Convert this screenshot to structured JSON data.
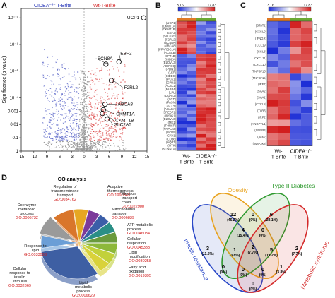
{
  "panels": {
    "a": {
      "label": "A"
    },
    "b": {
      "label": "B"
    },
    "c": {
      "label": "C"
    },
    "d": {
      "label": "D"
    },
    "e": {
      "label": "E"
    }
  },
  "chart_data": [
    {
      "panel": "A",
      "type": "scatter",
      "title": "",
      "legend_left": "CIDEA⁻/⁻ T-Brite",
      "legend_right": "Wt-T-Brite",
      "ylabel": "Significance (p value)",
      "xlabel": "Fold Change",
      "xlim": [
        -15,
        15
      ],
      "xticks": [
        "-15",
        "-12",
        "-9",
        "-6",
        "-3",
        "0",
        "3",
        "6",
        "9",
        "12",
        "15"
      ],
      "yticks": [
        "10⁻¹⁰",
        "10⁻⁸",
        "10⁻⁶",
        "10⁻⁴",
        "0.001",
        "0.01",
        "0.1",
        "1"
      ],
      "colors": {
        "down": "#1f2fb5",
        "up": "#d41f1f",
        "ns": "#9a9a9a"
      },
      "annotations": [
        {
          "label": "UCP1",
          "x": 14.2,
          "y": 1e-10
        },
        {
          "label": "SCN8A",
          "x": 5.2,
          "y": 3e-07
        },
        {
          "label": "EBF2",
          "x": 8.3,
          "y": 2e-07
        },
        {
          "label": "F2RL2",
          "x": 6.5,
          "y": 5e-06
        },
        {
          "label": "ABCA8",
          "x": 5.0,
          "y": 0.0003
        },
        {
          "label": "CKMT1A",
          "x": 4.6,
          "y": 0.0008
        },
        {
          "label": "CKMT1B",
          "x": 4.4,
          "y": 0.0015
        },
        {
          "label": "SLC2A5",
          "x": 5.5,
          "y": 0.004
        }
      ]
    },
    {
      "panel": "B",
      "type": "heatmap",
      "colorbar": {
        "min": "3.16",
        "max": "17.83"
      },
      "columns": [
        "Wt-\nT-Brite",
        "CIDEA⁻/⁻\nT-Brite"
      ],
      "column_labels": {
        "left": "Wt-",
        "left2": "T-Brite",
        "right": "CIDEA⁻/⁻",
        "right2": "T-Brite"
      },
      "rows": [
        "(UCP1)",
        "(CKMT1A)",
        "(CKMT1B)",
        "(EBF2)",
        "(SLC2A5)",
        "(F2RL2)",
        "(SCN8A)",
        "(ABCA8)",
        "(PPARGC1A)",
        "(ACACB)",
        "(CPT1B)",
        "(CIDEA)",
        "(ELOVL3)",
        "(ADIPOQ)",
        "(PLIN1)",
        "(LEP)",
        "(CIDEC)",
        "(PCK1)",
        "(GPD1)",
        "(ACSL1)",
        "(FABP4)",
        "(LPL)",
        "(DGAT2)",
        "(SCD)",
        "(FASN)",
        "(ACLY)",
        "(ACACA)",
        "(SREBF1)",
        "(INSIG1)",
        "(ELOVL6)",
        "(ME1)",
        "(THRSP)",
        "(PNPLA3)",
        "(SCD5)",
        "(CAV1)",
        "(CD36)",
        "(AQP7)",
        "(GYK)",
        "(SCNN1A)"
      ]
    },
    {
      "panel": "C",
      "type": "heatmap",
      "colorbar": {
        "min": "3.16",
        "max": "17.83"
      },
      "column_labels": {
        "left": "Wt-",
        "left2": "T-Brite",
        "right": "CIDEA⁻/⁻",
        "right2": "T-Brite"
      },
      "rows": [
        "(STAT1)",
        "(CXCL9)",
        "(IFNGR)",
        "(CCL19)",
        "(CCL8)",
        "(CXCL11)",
        "(CXCL10)",
        "(TNFSF13)",
        "(TNFSF15)",
        "(IRF7)",
        "(SAA2)",
        "(SAA1)",
        "(CXCL8)",
        "(TLR3)",
        "(IRF2)",
        "(ANGPTL1)",
        "(SPRR3)",
        "(JAK2)",
        "(MAP3K8)"
      ]
    },
    {
      "panel": "D",
      "type": "pie",
      "title": "GO analysis",
      "slices": [
        {
          "name": "Regulation of transmembrane transport",
          "go": "GO:0034762",
          "value": 6
        },
        {
          "name": "Adaptive thermogenesis",
          "go": "GO:1990845",
          "value": 5
        },
        {
          "name": "Electron transport chain",
          "go": "GO:0022900",
          "value": 5
        },
        {
          "name": "Mitochondrial transport",
          "go": "GO:0006839",
          "value": 5
        },
        {
          "name": "ATP metabolic process",
          "go": "GO:0046034",
          "value": 5
        },
        {
          "name": "Cellular respiration",
          "go": "GO:0045333",
          "value": 5
        },
        {
          "name": "Lipid modification",
          "go": "GO:0030258",
          "value": 5
        },
        {
          "name": "Fatty acid oxidation",
          "go": "GO:0019395",
          "value": 5
        },
        {
          "name": "Lipid metabolic process",
          "go": "GO:0006629",
          "value": 30
        },
        {
          "name": "Cellular response to insulin stimulus",
          "go": "GO:0032869",
          "value": 6
        },
        {
          "name": "Response to lipid",
          "go": "GO:0033993",
          "value": 9
        },
        {
          "name": "Coenzyme metabolic process",
          "go": "GO:0006732",
          "value": 9
        }
      ],
      "colors": [
        "#e6a722",
        "#7b3a9a",
        "#3b5ea8",
        "#2a8f86",
        "#6a9a3c",
        "#8db83a",
        "#c2d13a",
        "#d9d23a",
        "#3e5fa3",
        "#6b9ed6",
        "#9a9a9a",
        "#d9762b"
      ]
    },
    {
      "panel": "E",
      "type": "venn",
      "sets": [
        {
          "name": "Insulin resistance",
          "color": "#2a48c8"
        },
        {
          "name": "Obesity",
          "color": "#e8a21e"
        },
        {
          "name": "Type II Diabetes",
          "color": "#2f9a2f"
        },
        {
          "name": "Metabolic syndrome",
          "color": "#d42a2a"
        }
      ],
      "regions": [
        {
          "count": "12",
          "pct": "(46.2%)"
        },
        {
          "count": "6",
          "pct": "(23.1%)"
        },
        {
          "count": "3",
          "pct": "(11.5%)"
        },
        {
          "count": "2",
          "pct": "(7.7%)"
        },
        {
          "count": "0",
          "pct": "(0%)"
        },
        {
          "count": "4",
          "pct": "(15.4%)"
        },
        {
          "count": "0",
          "pct": "(0%)"
        },
        {
          "count": "1",
          "pct": "(3.8%)"
        },
        {
          "count": "5",
          "pct": "(19.2%)"
        },
        {
          "count": "2",
          "pct": "(7.7%)"
        },
        {
          "count": "0",
          "pct": "(0%)"
        },
        {
          "count": "1",
          "pct": "(3.8%)"
        },
        {
          "count": "0",
          "pct": "(0%)"
        },
        {
          "count": "0",
          "pct": "(0%)"
        },
        {
          "count": "0",
          "pct": "(0%)"
        }
      ]
    }
  ]
}
